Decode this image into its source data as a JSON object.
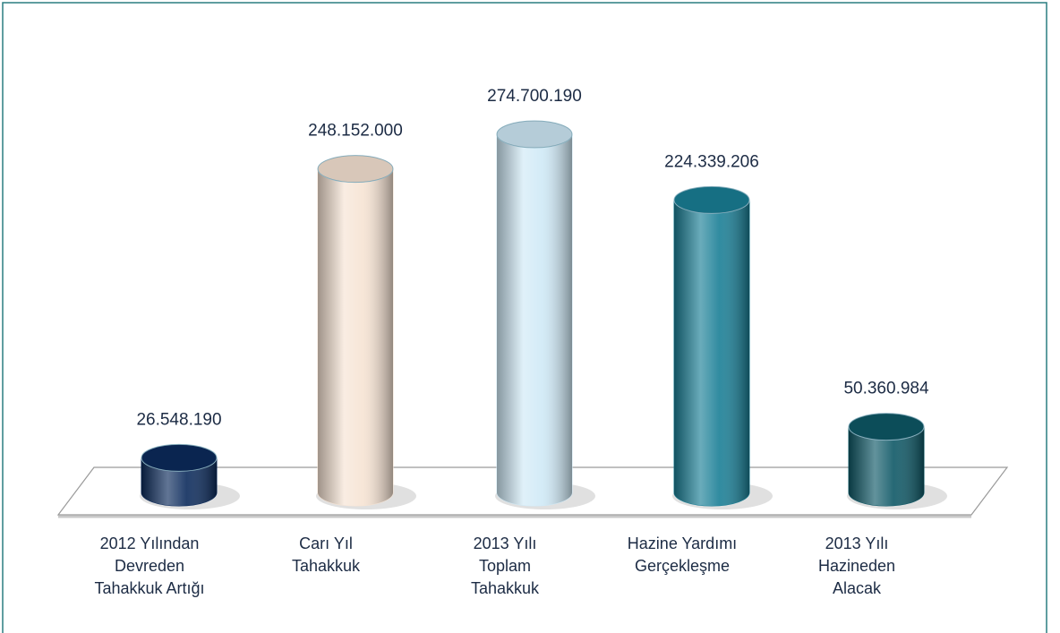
{
  "chart_data": {
    "type": "cylinder",
    "categories": [
      [
        "2012 Yılından",
        "Devreden",
        "Tahakkuk Artığı"
      ],
      [
        "Carı Yıl",
        "Tahakkuk"
      ],
      [
        "2013 Yılı",
        "Toplam",
        "Tahakkuk"
      ],
      [
        "Hazine Yardımı",
        "Gerçekleşme"
      ],
      [
        "2013 Yılı",
        "Hazineden",
        "Alacak"
      ]
    ],
    "values": [
      26548190,
      248152000,
      274700190,
      224339206,
      50360984
    ],
    "value_labels": [
      "26.548.190",
      "248.152.000",
      "274.700.190",
      "224.339.206",
      "50.360.984"
    ],
    "colors": [
      "#0c2b5c",
      "#f6e3d3",
      "#cfe9f6",
      "#1a7f96",
      "#0e5866"
    ]
  }
}
